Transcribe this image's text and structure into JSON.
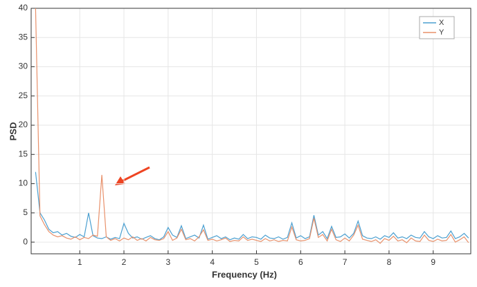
{
  "chart_data": {
    "type": "line",
    "xlabel": "Frequency (Hz)",
    "ylabel": "PSD",
    "x": [
      0,
      0.1,
      0.2,
      0.3,
      0.4,
      0.5,
      0.6,
      0.7,
      0.8,
      0.9,
      1,
      1.1,
      1.2,
      1.3,
      1.4,
      1.5,
      1.6,
      1.7,
      1.8,
      1.9,
      2,
      2.1,
      2.2,
      2.3,
      2.4,
      2.5,
      2.6,
      2.7,
      2.8,
      2.9,
      3,
      3.1,
      3.2,
      3.3,
      3.4,
      3.5,
      3.6,
      3.7,
      3.8,
      3.9,
      4,
      4.1,
      4.2,
      4.3,
      4.4,
      4.5,
      4.6,
      4.7,
      4.8,
      4.9,
      5,
      5.1,
      5.2,
      5.3,
      5.4,
      5.5,
      5.6,
      5.7,
      5.8,
      5.9,
      6,
      6.1,
      6.2,
      6.3,
      6.4,
      6.5,
      6.6,
      6.7,
      6.8,
      6.9,
      7,
      7.1,
      7.2,
      7.3,
      7.4,
      7.5,
      7.6,
      7.7,
      7.8,
      7.9,
      8,
      8.1,
      8.2,
      8.3,
      8.4,
      8.5,
      8.6,
      8.7,
      8.8,
      8.9,
      9,
      9.1,
      9.2,
      9.3,
      9.4,
      9.5,
      9.6,
      9.7,
      9.8
    ],
    "series": [
      {
        "name": "X",
        "color": "#4a9fd0",
        "values": [
          12,
          5,
          3.8,
          2.2,
          1.6,
          1.8,
          1.2,
          1.5,
          1,
          0.8,
          1.3,
          0.9,
          5,
          1.1,
          0.7,
          0.6,
          0.9,
          0.5,
          0.8,
          0.6,
          3.2,
          1.5,
          0.7,
          0.9,
          0.5,
          0.8,
          1.1,
          0.6,
          0.4,
          0.9,
          2.5,
          1.2,
          0.8,
          2.8,
          0.6,
          0.9,
          1.2,
          0.7,
          2.9,
          0.5,
          0.8,
          1.1,
          0.6,
          0.9,
          0.4,
          0.7,
          0.5,
          1.3,
          0.6,
          0.9,
          0.8,
          0.5,
          1.2,
          0.7,
          0.6,
          0.9,
          0.5,
          0.8,
          3.3,
          0.7,
          1.1,
          0.6,
          0.9,
          4.6,
          1.2,
          1.8,
          0.6,
          2.7,
          0.8,
          0.9,
          1.4,
          0.7,
          1.5,
          3.6,
          1.1,
          0.7,
          0.6,
          0.9,
          0.5,
          1.1,
          0.8,
          1.6,
          0.7,
          0.9,
          0.6,
          1.2,
          0.8,
          0.7,
          1.8,
          0.9,
          0.6,
          1.1,
          0.7,
          0.8,
          1.9,
          0.6,
          0.9,
          1.5,
          0.7
        ]
      },
      {
        "name": "Y",
        "color": "#e8906a",
        "values": [
          40,
          4.5,
          3,
          1.8,
          1.2,
          0.9,
          1.1,
          0.7,
          0.5,
          0.9,
          0.4,
          0.8,
          0.6,
          1.2,
          1,
          11.5,
          0.9,
          0.3,
          0.6,
          0.2,
          0.7,
          0.4,
          0.9,
          0.3,
          0.6,
          0.2,
          0.8,
          0.4,
          0.3,
          0.6,
          1.8,
          0.3,
          0.7,
          2.2,
          0.4,
          0.6,
          0.2,
          0.9,
          2.1,
          0.3,
          0.5,
          0.2,
          0.4,
          0.7,
          0.1,
          0.3,
          0.2,
          0.9,
          0.3,
          0.5,
          0.3,
          0.1,
          0.6,
          0.2,
          0.4,
          0.1,
          0.3,
          0.2,
          2.6,
          0.4,
          0.2,
          0.3,
          0.6,
          4.1,
          0.8,
          1.3,
          0.2,
          2.2,
          0.4,
          0.1,
          0.7,
          0.2,
          1.2,
          2.9,
          0.5,
          0.3,
          0.1,
          0.4,
          -0.2,
          0.6,
          0.3,
          1,
          0.2,
          0.4,
          -0.1,
          0.7,
          0.2,
          0.1,
          1.2,
          0.3,
          0.1,
          0.5,
          0.2,
          0.3,
          1.3,
          0,
          0.4,
          0.9,
          -0.1
        ]
      }
    ],
    "xlim": [
      -0.1,
      9.85
    ],
    "xticks": [
      1,
      2,
      3,
      4,
      5,
      6,
      7,
      8,
      9
    ],
    "ylim": [
      -2,
      40
    ],
    "yticks": [
      0,
      5,
      10,
      15,
      20,
      25,
      30,
      35,
      40
    ],
    "grid": true,
    "legend": "upper right"
  }
}
